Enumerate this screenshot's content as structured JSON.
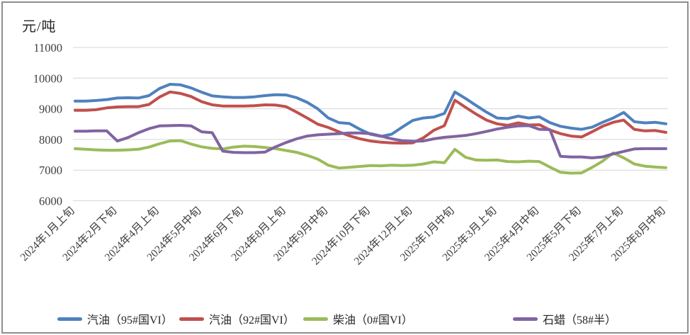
{
  "chart_data": {
    "type": "line",
    "title": "",
    "ylabel": "元/吨",
    "xlabel": "",
    "ylim": [
      6000,
      11000
    ],
    "ytick_step": 1000,
    "grid": true,
    "legend_position": "bottom",
    "gridline_color": "#d6d6d6",
    "text_color": "#3f3f3f",
    "x_tick_labels": [
      "2024年1月上旬",
      "2024年2月下旬",
      "2024年4月上旬",
      "2024年5月中旬",
      "2024年6月下旬",
      "2024年8月上旬",
      "2024年9月中旬",
      "2024年10月下旬",
      "2024年12月上旬",
      "2025年1月中旬",
      "2025年3月上旬",
      "2025年4月中旬",
      "2025年5月下旬",
      "2025年7月上旬",
      "2025年8月中旬"
    ],
    "x_tick_indices": [
      0,
      4,
      8,
      12,
      16,
      20,
      24,
      28,
      32,
      36,
      40,
      44,
      48,
      52,
      56
    ],
    "series": [
      {
        "name": "汽油（95#国VI）",
        "key": "gasoline-95",
        "color": "#4F81BD",
        "values": [
          9250,
          9250,
          9270,
          9300,
          9350,
          9360,
          9350,
          9430,
          9660,
          9800,
          9780,
          9680,
          9540,
          9420,
          9390,
          9370,
          9370,
          9390,
          9430,
          9460,
          9450,
          9360,
          9210,
          9000,
          8700,
          8550,
          8520,
          8330,
          8170,
          8100,
          8170,
          8400,
          8620,
          8700,
          8730,
          8850,
          9550,
          9340,
          9110,
          8890,
          8700,
          8680,
          8760,
          8700,
          8740,
          8550,
          8430,
          8370,
          8330,
          8400,
          8560,
          8700,
          8880,
          8580,
          8540,
          8560,
          8510
        ]
      },
      {
        "name": "汽油（92#国VI）",
        "key": "gasoline-92",
        "color": "#C0504D",
        "values": [
          8950,
          8950,
          8970,
          9030,
          9060,
          9070,
          9070,
          9140,
          9380,
          9550,
          9500,
          9400,
          9230,
          9130,
          9090,
          9090,
          9090,
          9100,
          9130,
          9120,
          9070,
          8890,
          8700,
          8500,
          8390,
          8250,
          8120,
          8020,
          7950,
          7910,
          7890,
          7880,
          7890,
          8050,
          8300,
          8450,
          9280,
          9050,
          8830,
          8630,
          8510,
          8460,
          8540,
          8470,
          8480,
          8310,
          8190,
          8110,
          8080,
          8250,
          8430,
          8560,
          8630,
          8330,
          8280,
          8290,
          8230
        ]
      },
      {
        "name": "柴油（0#国VI）",
        "key": "diesel-0",
        "color": "#9BBB59",
        "values": [
          7700,
          7680,
          7660,
          7650,
          7650,
          7660,
          7680,
          7750,
          7860,
          7950,
          7960,
          7850,
          7760,
          7710,
          7690,
          7750,
          7780,
          7770,
          7740,
          7700,
          7640,
          7580,
          7480,
          7360,
          7160,
          7070,
          7090,
          7120,
          7150,
          7140,
          7160,
          7150,
          7160,
          7200,
          7270,
          7240,
          7680,
          7420,
          7330,
          7320,
          7330,
          7280,
          7270,
          7290,
          7280,
          7100,
          6930,
          6900,
          6910,
          7090,
          7290,
          7560,
          7400,
          7200,
          7130,
          7100,
          7080
        ]
      },
      {
        "name": "石蜡（58#半）",
        "key": "paraffin-58",
        "color": "#8064A2",
        "values": [
          8270,
          8270,
          8280,
          8280,
          7950,
          8060,
          8220,
          8350,
          8440,
          8450,
          8460,
          8440,
          8250,
          8220,
          7620,
          7580,
          7570,
          7570,
          7590,
          7760,
          7900,
          8020,
          8110,
          8150,
          8170,
          8190,
          8210,
          8210,
          8190,
          8110,
          8020,
          7960,
          7940,
          7950,
          8020,
          8070,
          8100,
          8130,
          8190,
          8260,
          8340,
          8400,
          8440,
          8450,
          8330,
          8320,
          7450,
          7430,
          7430,
          7400,
          7430,
          7530,
          7610,
          7690,
          7700,
          7700,
          7700
        ]
      }
    ]
  }
}
